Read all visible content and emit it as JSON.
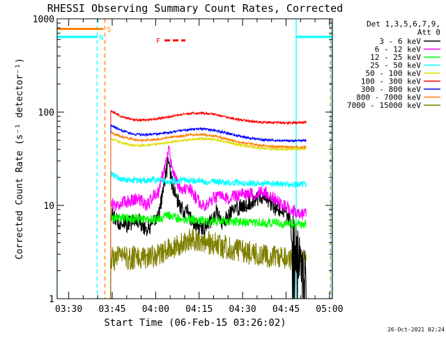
{
  "chart_data": {
    "type": "line",
    "title": "RHESSI Observing Summary Count Rates, Corrected",
    "ylabel": "Corrected Count Rate (s⁻¹ detector⁻¹)",
    "xlabel": "Start Time (06-Feb-15 03:26:02)",
    "timestamp": "26-Oct-2021 02:24",
    "y_scale": "log",
    "ylim": [
      1,
      1000
    ],
    "xlim_minutes_after_0326": [
      0,
      95
    ],
    "y_ticks": [
      {
        "value": 1,
        "label": "1"
      },
      {
        "value": 10,
        "label": "10"
      },
      {
        "value": 100,
        "label": "100"
      },
      {
        "value": 1000,
        "label": "1000"
      }
    ],
    "x_ticks": [
      {
        "value": 4,
        "label": "03:30"
      },
      {
        "value": 19,
        "label": "03:45"
      },
      {
        "value": 34,
        "label": "04:00"
      },
      {
        "value": 49,
        "label": "04:15"
      },
      {
        "value": 64,
        "label": "04:30"
      },
      {
        "value": 79,
        "label": "04:45"
      },
      {
        "value": 94,
        "label": "05:00"
      }
    ],
    "legend_header": [
      "Det 1,3,5,6,7,9,",
      "Att 0"
    ],
    "legend_position": "top-right",
    "markers": [
      {
        "label": "S",
        "color": "#ff7f00"
      },
      {
        "label": "N",
        "color": "#00ffff"
      },
      {
        "label": "F",
        "color": "#ff0000"
      }
    ],
    "state_bars": [
      {
        "name": "S",
        "color": "#ff7f00",
        "level": 780,
        "ranges": [
          [
            0,
            16
          ]
        ]
      },
      {
        "name": "N",
        "color": "#00ffff",
        "level": 640,
        "ranges": [
          [
            0,
            13.8
          ],
          [
            82.5,
            95
          ]
        ]
      }
    ],
    "state_lines": [
      {
        "color": "#00ffff",
        "style": "solid",
        "x": 0
      },
      {
        "color": "#00ffff",
        "style": "dashed",
        "x": 13.8
      },
      {
        "color": "#ff7f00",
        "style": "dashed",
        "x": 16.5
      },
      {
        "color": "#00ffff",
        "style": "solid",
        "x": 82.5
      },
      {
        "color": "#ff7f00",
        "style": "dashed",
        "x": 94.3
      },
      {
        "color": "#00ffff",
        "style": "solid",
        "x": 94.8
      }
    ],
    "data_range": [
      18.5,
      86
    ],
    "series": [
      {
        "name": "3 - 6 keV",
        "color": "#000000",
        "noise": 0.09,
        "drop_start": 81,
        "points": [
          [
            18.5,
            8.5
          ],
          [
            20,
            7
          ],
          [
            24,
            6.2
          ],
          [
            28,
            7
          ],
          [
            31,
            5.5
          ],
          [
            33,
            6.2
          ],
          [
            35,
            8
          ],
          [
            36.5,
            14
          ],
          [
            38,
            26
          ],
          [
            38.5,
            33
          ],
          [
            39.5,
            18
          ],
          [
            41,
            12
          ],
          [
            43,
            9
          ],
          [
            45,
            8.5
          ],
          [
            47,
            6.5
          ],
          [
            49,
            5.8
          ],
          [
            51,
            6
          ],
          [
            53,
            7
          ],
          [
            55,
            8.5
          ],
          [
            57,
            6.5
          ],
          [
            59,
            7.5
          ],
          [
            61,
            9
          ],
          [
            63,
            9.5
          ],
          [
            64,
            10
          ],
          [
            66,
            10.5
          ],
          [
            68,
            11.5
          ],
          [
            70,
            12.5
          ],
          [
            72,
            12
          ],
          [
            74,
            10.5
          ],
          [
            76,
            9
          ],
          [
            78,
            8.5
          ],
          [
            80,
            7.5
          ],
          [
            81,
            5
          ],
          [
            83,
            3
          ],
          [
            86,
            2
          ]
        ]
      },
      {
        "name": "6 - 12 keV",
        "color": "#ff00ff",
        "noise": 0.07,
        "points": [
          [
            18.5,
            11
          ],
          [
            20,
            10
          ],
          [
            24,
            11
          ],
          [
            28,
            12
          ],
          [
            31,
            10
          ],
          [
            33,
            12.5
          ],
          [
            35,
            14
          ],
          [
            36.5,
            22
          ],
          [
            38,
            34
          ],
          [
            38.5,
            42
          ],
          [
            40,
            22
          ],
          [
            42,
            16
          ],
          [
            44,
            15
          ],
          [
            46,
            14.5
          ],
          [
            48,
            12
          ],
          [
            50,
            10
          ],
          [
            52,
            10.5
          ],
          [
            54,
            12
          ],
          [
            56,
            12.5
          ],
          [
            58,
            11.5
          ],
          [
            60,
            12
          ],
          [
            62,
            13
          ],
          [
            64,
            13
          ],
          [
            66,
            13.5
          ],
          [
            68,
            13
          ],
          [
            70,
            14
          ],
          [
            72,
            13.5
          ],
          [
            74,
            12.5
          ],
          [
            76,
            11
          ],
          [
            78,
            10
          ],
          [
            80,
            9.5
          ],
          [
            82,
            8.5
          ],
          [
            86,
            8
          ]
        ]
      },
      {
        "name": "12 - 25 keV",
        "color": "#00ff00",
        "noise": 0.05,
        "points": [
          [
            18.5,
            7.5
          ],
          [
            22,
            7.3
          ],
          [
            28,
            7.2
          ],
          [
            34,
            7
          ],
          [
            38.5,
            7.8
          ],
          [
            42,
            7.2
          ],
          [
            48,
            7
          ],
          [
            54,
            6.8
          ],
          [
            60,
            6.7
          ],
          [
            66,
            6.6
          ],
          [
            72,
            6.5
          ],
          [
            78,
            6.4
          ],
          [
            82,
            6.3
          ],
          [
            86,
            6.3
          ]
        ]
      },
      {
        "name": "25 - 50 keV",
        "color": "#00ffff",
        "noise": 0.035,
        "points": [
          [
            18.5,
            22
          ],
          [
            22,
            19
          ],
          [
            26,
            18.5
          ],
          [
            30,
            18.5
          ],
          [
            34,
            19
          ],
          [
            38,
            18
          ],
          [
            42,
            18.5
          ],
          [
            46,
            18.5
          ],
          [
            50,
            18
          ],
          [
            54,
            18
          ],
          [
            58,
            17.5
          ],
          [
            62,
            17.5
          ],
          [
            66,
            17.5
          ],
          [
            70,
            17
          ],
          [
            74,
            17
          ],
          [
            78,
            17
          ],
          [
            82,
            16.5
          ],
          [
            86,
            17
          ]
        ]
      },
      {
        "name": "50 - 100 keV",
        "color": "#dddd00",
        "noise": 0.012,
        "points": [
          [
            18.5,
            52
          ],
          [
            22,
            47
          ],
          [
            26,
            44
          ],
          [
            30,
            44
          ],
          [
            34,
            45
          ],
          [
            38,
            47
          ],
          [
            42,
            49
          ],
          [
            46,
            51
          ],
          [
            50,
            52
          ],
          [
            54,
            51
          ],
          [
            58,
            48
          ],
          [
            62,
            45
          ],
          [
            66,
            43
          ],
          [
            70,
            41
          ],
          [
            74,
            40.5
          ],
          [
            78,
            40
          ],
          [
            82,
            40
          ],
          [
            86,
            40.5
          ]
        ]
      },
      {
        "name": "100 - 300 keV",
        "color": "#ff0000",
        "noise": 0.012,
        "points": [
          [
            18.5,
            103
          ],
          [
            22,
            90
          ],
          [
            26,
            83
          ],
          [
            30,
            82
          ],
          [
            34,
            84
          ],
          [
            38,
            88
          ],
          [
            42,
            93
          ],
          [
            46,
            97
          ],
          [
            50,
            98
          ],
          [
            54,
            95
          ],
          [
            58,
            89
          ],
          [
            62,
            84
          ],
          [
            66,
            80
          ],
          [
            70,
            78
          ],
          [
            74,
            77
          ],
          [
            78,
            77
          ],
          [
            82,
            77
          ],
          [
            86,
            78
          ]
        ]
      },
      {
        "name": "300 - 800 keV",
        "color": "#0000ff",
        "noise": 0.012,
        "points": [
          [
            18.5,
            72
          ],
          [
            22,
            64
          ],
          [
            26,
            58
          ],
          [
            30,
            57
          ],
          [
            34,
            58
          ],
          [
            38,
            60
          ],
          [
            42,
            63
          ],
          [
            46,
            65
          ],
          [
            50,
            66
          ],
          [
            54,
            64
          ],
          [
            58,
            60
          ],
          [
            62,
            56
          ],
          [
            66,
            53
          ],
          [
            70,
            51
          ],
          [
            74,
            50
          ],
          [
            78,
            49.5
          ],
          [
            82,
            49
          ],
          [
            86,
            49.5
          ]
        ]
      },
      {
        "name": "800 - 7000 keV",
        "color": "#ff7f00",
        "noise": 0.012,
        "points": [
          [
            18.5,
            60
          ],
          [
            22,
            55
          ],
          [
            26,
            51
          ],
          [
            30,
            50
          ],
          [
            34,
            51
          ],
          [
            38,
            53
          ],
          [
            42,
            55
          ],
          [
            46,
            57
          ],
          [
            50,
            57.5
          ],
          [
            54,
            55.5
          ],
          [
            58,
            52
          ],
          [
            62,
            48
          ],
          [
            66,
            46
          ],
          [
            70,
            44
          ],
          [
            74,
            43
          ],
          [
            78,
            42.5
          ],
          [
            82,
            42
          ],
          [
            86,
            42.5
          ]
        ]
      },
      {
        "name": "7000 - 15000 keV",
        "color": "#808000",
        "noise": 0.13,
        "points": [
          [
            18.5,
            2.7
          ],
          [
            24,
            2.7
          ],
          [
            30,
            2.8
          ],
          [
            36,
            3
          ],
          [
            40,
            3.5
          ],
          [
            44,
            4.2
          ],
          [
            48,
            4.4
          ],
          [
            52,
            4.0
          ],
          [
            56,
            3.7
          ],
          [
            60,
            3.5
          ],
          [
            64,
            3.2
          ],
          [
            70,
            3.0
          ],
          [
            76,
            2.8
          ],
          [
            80,
            2.7
          ],
          [
            82,
            2.5
          ],
          [
            86,
            2.5
          ]
        ]
      }
    ]
  }
}
